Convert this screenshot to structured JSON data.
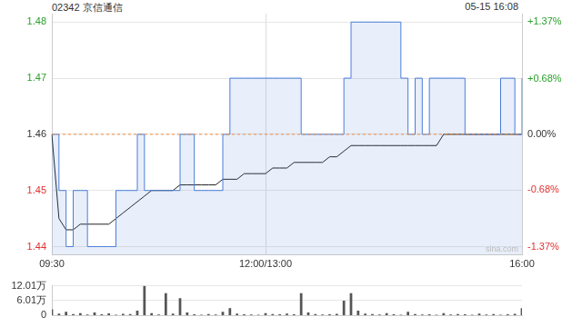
{
  "chart_data": [
    {
      "type": "line",
      "title": "02342 京信通信",
      "subtitle": "05-15 16:08",
      "annotations": [
        "sina.com"
      ],
      "categories": [
        "09:30",
        null,
        null,
        null,
        null,
        null,
        null,
        null,
        null,
        null,
        null,
        null,
        null,
        null,
        null,
        null,
        null,
        null,
        null,
        null,
        null,
        null,
        null,
        null,
        null,
        null,
        null,
        null,
        null,
        null,
        "12:00/13:00",
        null,
        null,
        null,
        null,
        null,
        null,
        null,
        null,
        null,
        null,
        null,
        null,
        null,
        null,
        null,
        null,
        null,
        null,
        null,
        null,
        null,
        null,
        null,
        null,
        null,
        null,
        null,
        null,
        null,
        null,
        null,
        null,
        null,
        null,
        null,
        "16:00"
      ],
      "series": [
        {
          "color": "#4a7fd8",
          "line_style": "step",
          "values": [
            1.46,
            1.45,
            1.44,
            1.45,
            1.45,
            1.44,
            1.44,
            1.44,
            1.44,
            1.45,
            1.45,
            1.45,
            1.46,
            1.45,
            1.45,
            1.45,
            1.45,
            1.45,
            1.46,
            1.46,
            1.45,
            1.45,
            1.45,
            1.45,
            1.46,
            1.47,
            1.47,
            1.47,
            1.47,
            1.47,
            1.47,
            1.47,
            1.47,
            1.47,
            1.47,
            1.46,
            1.46,
            1.46,
            1.46,
            1.46,
            1.46,
            1.47,
            1.48,
            1.48,
            1.48,
            1.48,
            1.48,
            1.48,
            1.48,
            1.47,
            1.46,
            1.47,
            1.46,
            1.47,
            1.47,
            1.47,
            1.47,
            1.47,
            1.46,
            1.46,
            1.46,
            1.46,
            1.46,
            1.47,
            1.47,
            1.46,
            1.47
          ]
        },
        {
          "color": "#222222",
          "line_style": "solid",
          "values": [
            1.46,
            1.445,
            1.443,
            1.443,
            1.444,
            1.444,
            1.444,
            1.444,
            1.444,
            1.445,
            1.446,
            1.447,
            1.448,
            1.449,
            1.45,
            1.45,
            1.45,
            1.45,
            1.451,
            1.451,
            1.451,
            1.451,
            1.451,
            1.451,
            1.452,
            1.452,
            1.452,
            1.453,
            1.453,
            1.453,
            1.453,
            1.454,
            1.454,
            1.454,
            1.455,
            1.455,
            1.455,
            1.455,
            1.455,
            1.456,
            1.456,
            1.457,
            1.458,
            1.458,
            1.458,
            1.458,
            1.458,
            1.458,
            1.458,
            1.458,
            1.458,
            1.458,
            1.458,
            1.458,
            1.458,
            1.46,
            1.46,
            1.46,
            1.46,
            1.46,
            1.46,
            1.46,
            1.46,
            1.46,
            1.46,
            1.46,
            1.46
          ]
        }
      ],
      "reference_line": 1.46,
      "ylim": [
        1.4385,
        1.4815
      ],
      "yticks": [
        1.44,
        1.45,
        1.46,
        1.47,
        1.48
      ],
      "y2lim": [
        -1.4726,
        1.4726
      ],
      "y2ticks": [
        {
          "value": -1.37,
          "label": "-1.37%"
        },
        {
          "value": -0.68,
          "label": "-0.68%"
        },
        {
          "value": 0,
          "label": "0.00%"
        },
        {
          "value": 0.68,
          "label": "+0.68%"
        },
        {
          "value": 1.37,
          "label": "+1.37%"
        }
      ],
      "grid": true
    },
    {
      "type": "bar",
      "categories": [
        null,
        null,
        null,
        null,
        null,
        null,
        null,
        null,
        null,
        null,
        null,
        null,
        null,
        null,
        null,
        null,
        null,
        null,
        null,
        null,
        null,
        null,
        null,
        null,
        null,
        null,
        null,
        null,
        null,
        null,
        null,
        null,
        null,
        null,
        null,
        null,
        null,
        null,
        null,
        null,
        null,
        null,
        null,
        null,
        null,
        null,
        null,
        null,
        null,
        null,
        null,
        null,
        null,
        null,
        null,
        null,
        null,
        null,
        null,
        null,
        null,
        null,
        null,
        null,
        null,
        null,
        null
      ],
      "values": [
        25000,
        8000,
        15000,
        6000,
        10000,
        4000,
        12000,
        5000,
        9000,
        3000,
        7000,
        6000,
        20000,
        120000,
        10000,
        4000,
        90000,
        8000,
        70000,
        12000,
        5000,
        3000,
        6000,
        4000,
        15000,
        30000,
        8000,
        5000,
        4000,
        3000,
        10000,
        6000,
        5000,
        8000,
        5000,
        90000,
        12000,
        6000,
        4000,
        5000,
        7000,
        60000,
        90000,
        20000,
        8000,
        6000,
        4000,
        10000,
        5000,
        3000,
        15000,
        6000,
        4000,
        5000,
        3000,
        10000,
        4000,
        6000,
        5000,
        3000,
        8000,
        4000,
        6000,
        3000,
        5000,
        7000,
        30000
      ],
      "color": "#555555",
      "ylim": [
        0,
        120100
      ],
      "yticks": [
        0,
        {
          "value": 60100,
          "label": "6.01万"
        },
        {
          "value": 120100,
          "label": "12.01万"
        }
      ],
      "tick_labels": "y",
      "grid": true
    }
  ]
}
